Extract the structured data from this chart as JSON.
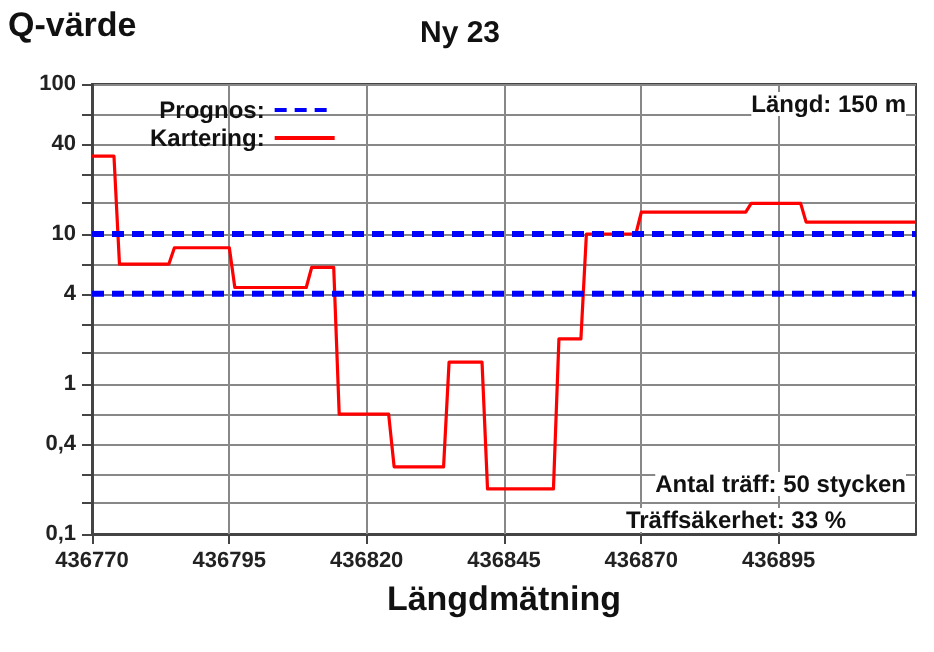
{
  "chart_data": {
    "type": "line",
    "title": "Ny 23",
    "ylabel": "Q-värde",
    "xlabel": "Längdmätning",
    "annotations": [
      "Längd: 150 m",
      "Antal träff: 50 stycken",
      "Träffsäkerhet: 33 %"
    ],
    "log": "y",
    "grid": true,
    "legend": "top left",
    "marker": "none",
    "xlim": [
      436770,
      436920
    ],
    "xticks": [
      436770,
      436795,
      436820,
      436845,
      436870,
      436895
    ],
    "ylim": [
      0.1,
      100
    ],
    "yticks": [
      {
        "value": 0.1,
        "label": "0,1"
      },
      {
        "value": 0.16,
        "label": null
      },
      {
        "value": 0.25,
        "label": null
      },
      {
        "value": 0.4,
        "label": "0,4"
      },
      {
        "value": 0.63,
        "label": null
      },
      1,
      {
        "value": 1.6,
        "label": null
      },
      {
        "value": 2.5,
        "label": null
      },
      4,
      {
        "value": 6.3,
        "label": null
      },
      10,
      {
        "value": 16,
        "label": null
      },
      {
        "value": 25,
        "label": null
      },
      40,
      {
        "value": 63,
        "label": null
      },
      100
    ],
    "series": [
      {
        "name": "Prognos:",
        "color": "#0000ff",
        "line_style": "dashed",
        "x": [
          436770,
          436920
        ],
        "values": [
          10,
          10
        ]
      },
      {
        "color": "#0000ff",
        "line_style": "dashed",
        "x": [
          436770,
          436920
        ],
        "values": [
          4,
          4
        ]
      },
      {
        "name": "Kartering:",
        "color": "#ff0000",
        "line_style": "solid",
        "x": [
          436770,
          436774,
          436775,
          436784,
          436785,
          436795,
          436796,
          436809,
          436810,
          436814,
          436815,
          436824,
          436825,
          436834,
          436835,
          436841,
          436842,
          436854,
          436855,
          436859,
          436860,
          436869,
          436870,
          436889,
          436890,
          436899,
          436900,
          436920
        ],
        "values": [
          33,
          33,
          6.3,
          6.3,
          8.1,
          8.1,
          4.4,
          4.4,
          6,
          6,
          0.63,
          0.63,
          0.28,
          0.28,
          1.4,
          1.4,
          0.2,
          0.2,
          2,
          2,
          10,
          10,
          14,
          14,
          16,
          16,
          12,
          12
        ]
      }
    ]
  }
}
